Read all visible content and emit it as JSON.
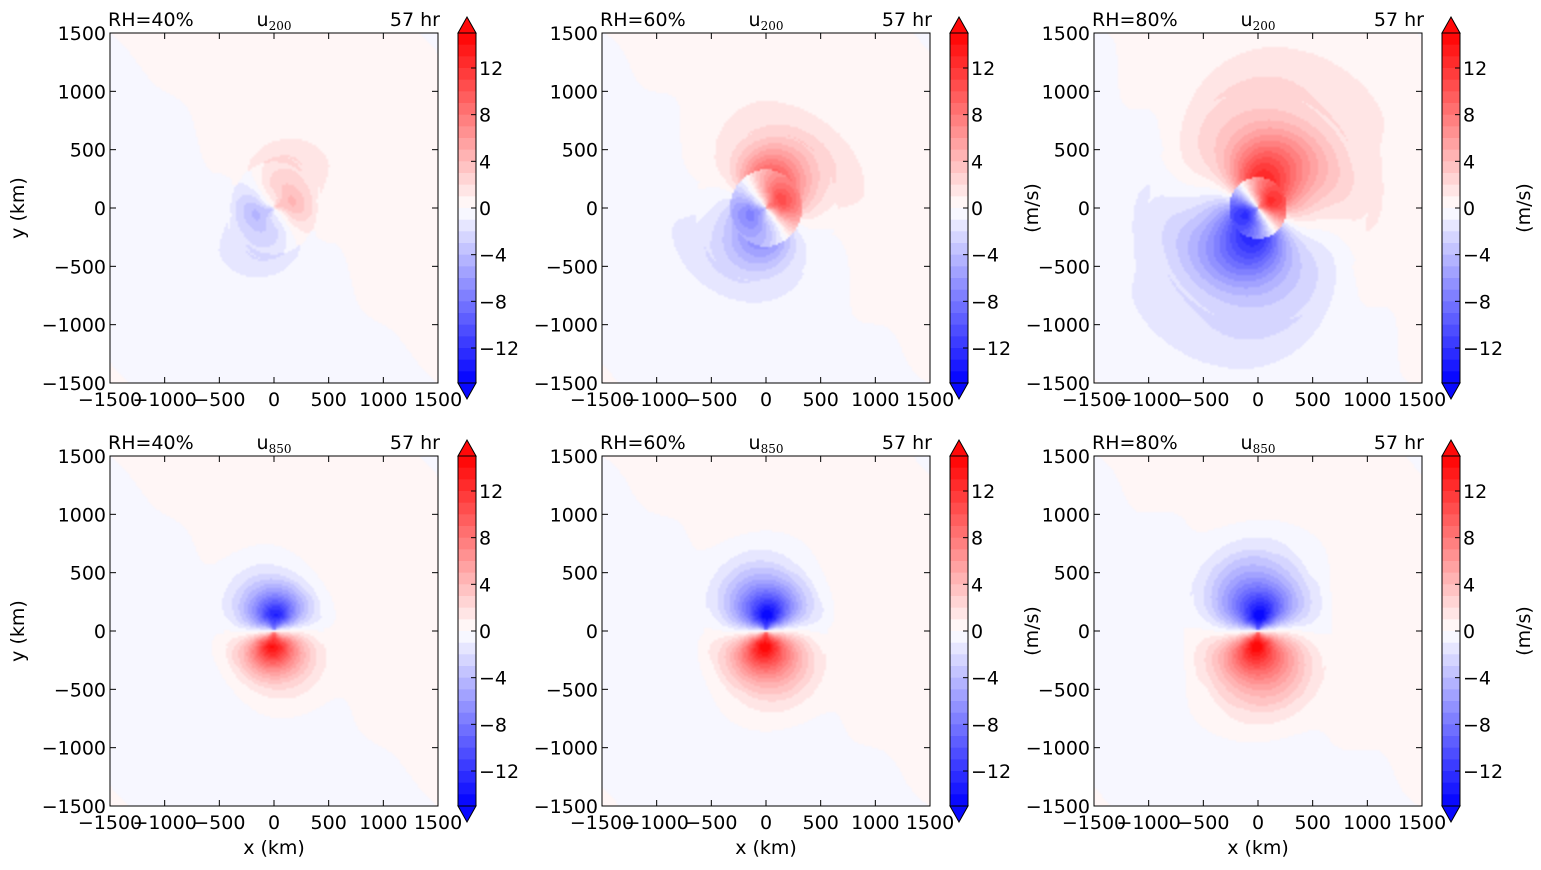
{
  "figure": {
    "colorbar": {
      "min": -15,
      "max": 15,
      "step": 1,
      "extend": "both",
      "ticks": [
        -12,
        -8,
        -4,
        0,
        4,
        8,
        12
      ],
      "tick_labels": [
        "−12",
        "−8",
        "−4",
        "0",
        "4",
        "8",
        "12"
      ],
      "label": "(m/s)",
      "colors": {
        "negative": "#0000ff",
        "zero": "#ffffff",
        "positive": "#ff0000"
      }
    }
  },
  "chart_data": [
    {
      "type": "heatmap",
      "row": 0,
      "col": 0,
      "title_left": "RH=40%",
      "title_center_base": "u",
      "title_center_sub": "200",
      "title_right": "57 hr",
      "xlabel": "",
      "ylabel": "y (km)",
      "colorbar_label": "",
      "xlim": [
        -1500,
        1500
      ],
      "ylim": [
        -1500,
        1500
      ],
      "xticks": [
        -1500,
        -1000,
        -500,
        0,
        500,
        1000,
        1500
      ],
      "yticks": [
        -1500,
        -1000,
        -500,
        0,
        500,
        1000,
        1500
      ],
      "tick_labels": [
        "−1500",
        "−1000",
        "−500",
        "0",
        "500",
        "1000",
        "1500"
      ],
      "field": {
        "pattern": "upper-level dipole",
        "peak_positive_ms": 5,
        "peak_negative_ms": -5,
        "core_radius_km": 180,
        "outer_radius_km": 450,
        "background_ms": 0.6
      }
    },
    {
      "type": "heatmap",
      "row": 0,
      "col": 1,
      "title_left": "RH=60%",
      "title_center_base": "u",
      "title_center_sub": "200",
      "title_right": "57 hr",
      "xlabel": "",
      "ylabel": "",
      "colorbar_label": "(m/s)",
      "xlim": [
        -1500,
        1500
      ],
      "ylim": [
        -1500,
        1500
      ],
      "xticks": [
        -1500,
        -1000,
        -500,
        0,
        500,
        1000,
        1500
      ],
      "yticks": [
        -1500,
        -1000,
        -500,
        0,
        500,
        1000,
        1500
      ],
      "tick_labels": [
        "−1500",
        "−1000",
        "−500",
        "0",
        "500",
        "1000",
        "1500"
      ],
      "field": {
        "pattern": "upper-level dipole",
        "peak_positive_ms": 13,
        "peak_negative_ms": -9,
        "core_radius_km": 150,
        "outer_radius_km": 650,
        "background_ms": 0.6
      }
    },
    {
      "type": "heatmap",
      "row": 0,
      "col": 2,
      "title_left": "RH=80%",
      "title_center_base": "u",
      "title_center_sub": "200",
      "title_right": "57 hr",
      "xlabel": "",
      "ylabel": "",
      "colorbar_label": "(m/s)",
      "xlim": [
        -1500,
        1500
      ],
      "ylim": [
        -1500,
        1500
      ],
      "xticks": [
        -1500,
        -1000,
        -500,
        0,
        500,
        1000,
        1500
      ],
      "yticks": [
        -1500,
        -1000,
        -500,
        0,
        500,
        1000,
        1500
      ],
      "tick_labels": [
        "−1500",
        "−1000",
        "−500",
        "0",
        "500",
        "1000",
        "1500"
      ],
      "field": {
        "pattern": "upper-level dipole",
        "peak_positive_ms": 15,
        "peak_negative_ms": -15,
        "core_radius_km": 120,
        "outer_radius_km": 1000,
        "background_ms": 0.6
      }
    },
    {
      "type": "heatmap",
      "row": 1,
      "col": 0,
      "title_left": "RH=40%",
      "title_center_base": "u",
      "title_center_sub": "850",
      "title_right": "57 hr",
      "xlabel": "x (km)",
      "ylabel": "y (km)",
      "colorbar_label": "",
      "xlim": [
        -1500,
        1500
      ],
      "ylim": [
        -1500,
        1500
      ],
      "xticks": [
        -1500,
        -1000,
        -500,
        0,
        500,
        1000,
        1500
      ],
      "yticks": [
        -1500,
        -1000,
        -500,
        0,
        500,
        1000,
        1500
      ],
      "tick_labels": [
        "−1500",
        "−1000",
        "−500",
        "0",
        "500",
        "1000",
        "1500"
      ],
      "field": {
        "pattern": "low-level dipole",
        "peak_positive_ms": 14,
        "peak_negative_ms": -13,
        "core_radius_km": 140,
        "outer_radius_km": 450,
        "background_ms": 0.6
      }
    },
    {
      "type": "heatmap",
      "row": 1,
      "col": 1,
      "title_left": "RH=60%",
      "title_center_base": "u",
      "title_center_sub": "850",
      "title_right": "57 hr",
      "xlabel": "x (km)",
      "ylabel": "",
      "colorbar_label": "(m/s)",
      "xlim": [
        -1500,
        1500
      ],
      "ylim": [
        -1500,
        1500
      ],
      "xticks": [
        -1500,
        -1000,
        -500,
        0,
        500,
        1000,
        1500
      ],
      "yticks": [
        -1500,
        -1000,
        -500,
        0,
        500,
        1000,
        1500
      ],
      "tick_labels": [
        "−1500",
        "−1000",
        "−500",
        "0",
        "500",
        "1000",
        "1500"
      ],
      "field": {
        "pattern": "low-level dipole",
        "peak_positive_ms": 15,
        "peak_negative_ms": -15,
        "core_radius_km": 130,
        "outer_radius_km": 560,
        "background_ms": 0.6
      }
    },
    {
      "type": "heatmap",
      "row": 1,
      "col": 2,
      "title_left": "RH=80%",
      "title_center_base": "u",
      "title_center_sub": "850",
      "title_right": "57 hr",
      "xlabel": "x (km)",
      "ylabel": "",
      "colorbar_label": "(m/s)",
      "xlim": [
        -1500,
        1500
      ],
      "ylim": [
        -1500,
        1500
      ],
      "xticks": [
        -1500,
        -1000,
        -500,
        0,
        500,
        1000,
        1500
      ],
      "yticks": [
        -1500,
        -1000,
        -500,
        0,
        500,
        1000,
        1500
      ],
      "tick_labels": [
        "−1500",
        "−1000",
        "−500",
        "0",
        "500",
        "1000",
        "1500"
      ],
      "field": {
        "pattern": "low-level dipole",
        "peak_positive_ms": 15,
        "peak_negative_ms": -15,
        "core_radius_km": 120,
        "outer_radius_km": 680,
        "background_ms": 0.6
      }
    }
  ]
}
